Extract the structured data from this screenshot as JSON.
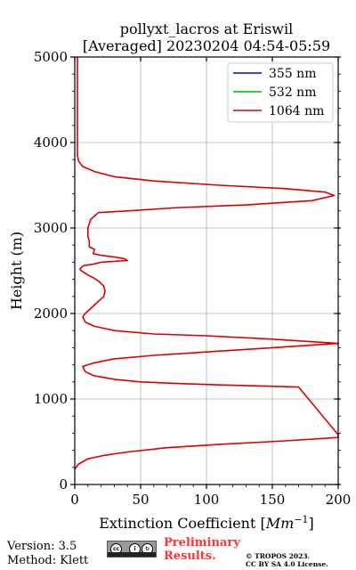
{
  "chart_data": {
    "type": "line",
    "title": "pollyxt_lacros at Eriswil",
    "subtitle": "[Averaged] 20230204 04:54-05:59",
    "xlabel": "Extinction Coefficient [",
    "xlabel_unit": "Mm",
    "xlabel_exp": "−1",
    "xlabel_close": "]",
    "ylabel": "Height (m)",
    "xlim": [
      0,
      200
    ],
    "ylim": [
      0,
      5000
    ],
    "xticks": [
      0,
      50,
      100,
      150,
      200
    ],
    "yticks": [
      0,
      1000,
      2000,
      3000,
      4000,
      5000
    ],
    "grid": true,
    "legend_position": "top-right",
    "series": [
      {
        "name": "355 nm",
        "color": "#0000ff",
        "x": [],
        "y": []
      },
      {
        "name": "532 nm",
        "color": "#00bb00",
        "x": [],
        "y": []
      },
      {
        "name": "1064 nm",
        "color": "#dd0000",
        "x": [
          0,
          3,
          10,
          22,
          40,
          70,
          110,
          160,
          200,
          200,
          170,
          120,
          80,
          50,
          30,
          15,
          8,
          6,
          14,
          30,
          60,
          100,
          150,
          200,
          150,
          100,
          60,
          30,
          15,
          8,
          6,
          8,
          15,
          22,
          23,
          22,
          18,
          14,
          10,
          7,
          5,
          4,
          5,
          7,
          11,
          15,
          20,
          40,
          38,
          30,
          20,
          14,
          15,
          11,
          11,
          10,
          10,
          12,
          18,
          40,
          80,
          130,
          180,
          197,
          190,
          160,
          110,
          60,
          30,
          15,
          6,
          3,
          2,
          2,
          2,
          2
        ],
        "y": [
          180,
          240,
          300,
          340,
          380,
          430,
          470,
          510,
          550,
          580,
          1140,
          1160,
          1180,
          1200,
          1230,
          1270,
          1320,
          1380,
          1420,
          1470,
          1510,
          1550,
          1600,
          1650,
          1700,
          1740,
          1760,
          1800,
          1850,
          1900,
          1960,
          2000,
          2100,
          2200,
          2260,
          2320,
          2380,
          2420,
          2450,
          2480,
          2500,
          2520,
          2540,
          2560,
          2570,
          2580,
          2600,
          2620,
          2640,
          2660,
          2680,
          2700,
          2750,
          2780,
          2850,
          2900,
          3000,
          3100,
          3180,
          3200,
          3240,
          3270,
          3320,
          3380,
          3420,
          3460,
          3500,
          3550,
          3600,
          3660,
          3720,
          3780,
          3850,
          3950,
          4200,
          5000
        ]
      }
    ]
  },
  "footer": {
    "version": "Version: 3.5",
    "method": "Method: Klett",
    "prelim_line1": "Preliminary",
    "prelim_line2": "Results.",
    "copyright_line1": "© TROPOS 2023.",
    "copyright_line2": "CC BY SA 4.0 License."
  }
}
